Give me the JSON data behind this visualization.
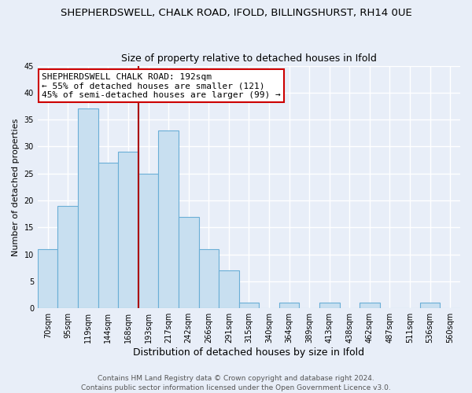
{
  "title": "SHEPHERDSWELL, CHALK ROAD, IFOLD, BILLINGSHURST, RH14 0UE",
  "subtitle": "Size of property relative to detached houses in Ifold",
  "xlabel": "Distribution of detached houses by size in Ifold",
  "ylabel": "Number of detached properties",
  "bin_labels": [
    "70sqm",
    "95sqm",
    "119sqm",
    "144sqm",
    "168sqm",
    "193sqm",
    "217sqm",
    "242sqm",
    "266sqm",
    "291sqm",
    "315sqm",
    "340sqm",
    "364sqm",
    "389sqm",
    "413sqm",
    "438sqm",
    "462sqm",
    "487sqm",
    "511sqm",
    "536sqm",
    "560sqm"
  ],
  "bar_values": [
    11,
    19,
    37,
    27,
    29,
    25,
    33,
    17,
    11,
    7,
    1,
    0,
    1,
    0,
    1,
    0,
    1,
    0,
    0,
    1,
    0
  ],
  "bar_color": "#c8dff0",
  "bar_edge_color": "#6aaed6",
  "vline_color": "#aa0000",
  "ylim": [
    0,
    45
  ],
  "yticks": [
    0,
    5,
    10,
    15,
    20,
    25,
    30,
    35,
    40,
    45
  ],
  "annotation_title": "SHEPHERDSWELL CHALK ROAD: 192sqm",
  "annotation_line1": "← 55% of detached houses are smaller (121)",
  "annotation_line2": "45% of semi-detached houses are larger (99) →",
  "annotation_box_color": "#ffffff",
  "annotation_box_edge": "#cc0000",
  "footer_line1": "Contains HM Land Registry data © Crown copyright and database right 2024.",
  "footer_line2": "Contains public sector information licensed under the Open Government Licence v3.0.",
  "bg_color": "#e8eef8",
  "plot_bg_color": "#e8eef8",
  "grid_color": "#ffffff",
  "title_fontsize": 9.5,
  "subtitle_fontsize": 9,
  "xlabel_fontsize": 9,
  "ylabel_fontsize": 8,
  "tick_fontsize": 7,
  "annotation_fontsize": 8,
  "footer_fontsize": 6.5
}
